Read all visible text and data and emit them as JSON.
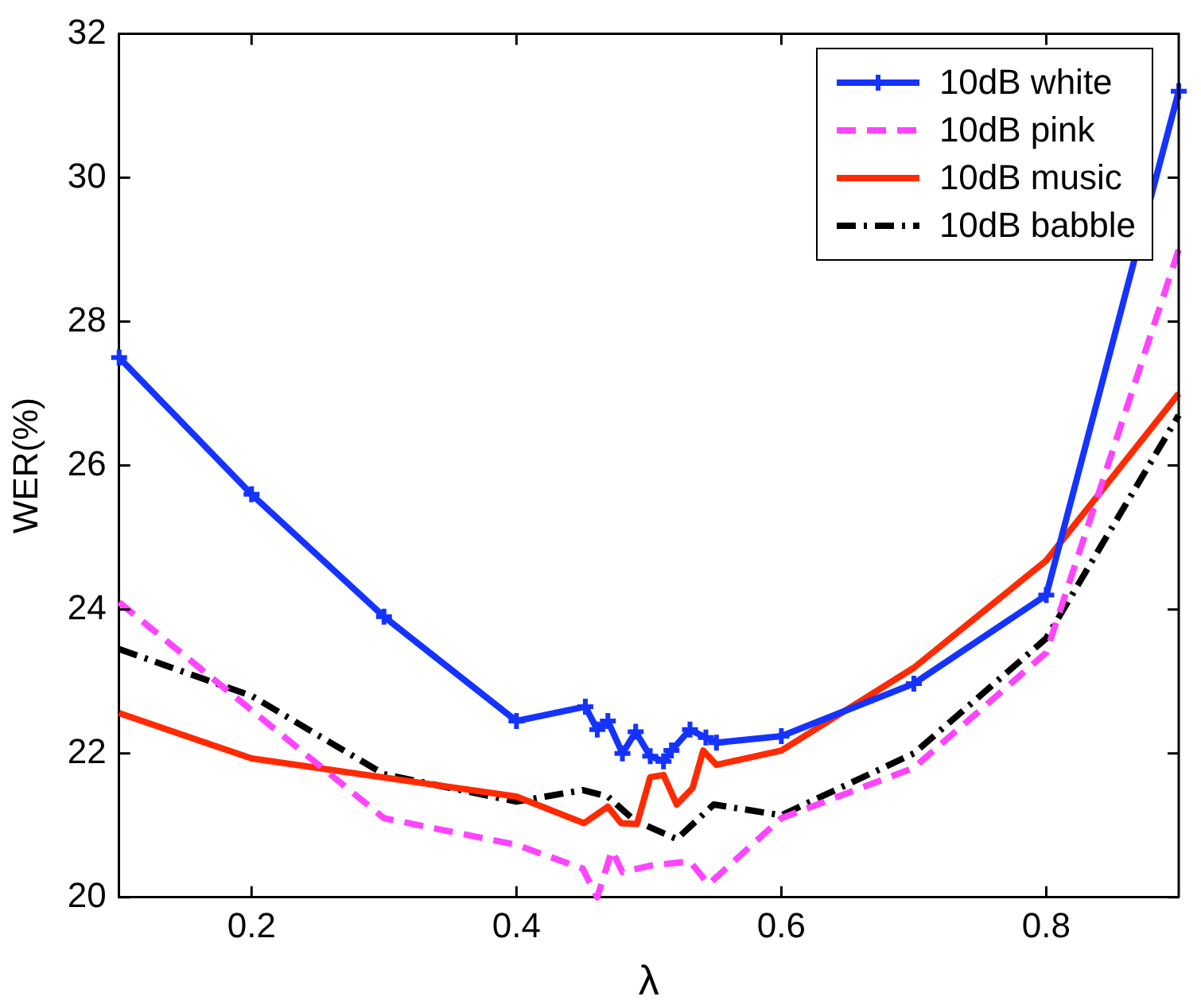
{
  "chart_data": {
    "type": "line",
    "xlabel": "λ",
    "ylabel": "WER(%)",
    "xlim": [
      0.1,
      0.9
    ],
    "ylim": [
      20,
      32
    ],
    "xticks": [
      0.2,
      0.4,
      0.6,
      0.8
    ],
    "yticks": [
      20,
      22,
      24,
      26,
      28,
      30,
      32
    ],
    "grid": false,
    "legend": "top right",
    "series": [
      {
        "name": "10dB white",
        "color": "#1533ff",
        "marker": "cross",
        "line_style": "solid",
        "x": [
          0.1,
          0.2,
          0.3,
          0.4,
          0.452,
          0.461,
          0.469,
          0.48,
          0.49,
          0.501,
          0.511,
          0.517,
          0.531,
          0.543,
          0.551,
          0.6,
          0.7,
          0.8,
          0.9
        ],
        "values": [
          27.5,
          25.6,
          23.9,
          22.45,
          22.65,
          22.33,
          22.45,
          22.0,
          22.3,
          21.96,
          21.89,
          22.04,
          22.33,
          22.22,
          22.15,
          22.24,
          22.97,
          24.2,
          31.2
        ]
      },
      {
        "name": "10dB pink",
        "color": "#ff44ff",
        "marker": "none",
        "line_style": "dashed",
        "x": [
          0.1,
          0.2,
          0.3,
          0.4,
          0.45,
          0.461,
          0.472,
          0.48,
          0.501,
          0.531,
          0.545,
          0.6,
          0.7,
          0.8,
          0.9
        ],
        "values": [
          24.1,
          22.6,
          21.1,
          20.73,
          20.4,
          20.0,
          20.65,
          20.35,
          20.44,
          20.5,
          20.18,
          21.1,
          21.8,
          23.4,
          29.0
        ]
      },
      {
        "name": "10dB music",
        "color": "#ff2a00",
        "marker": "none",
        "line_style": "solid",
        "x": [
          0.1,
          0.2,
          0.4,
          0.451,
          0.469,
          0.479,
          0.491,
          0.501,
          0.511,
          0.521,
          0.533,
          0.541,
          0.551,
          0.6,
          0.7,
          0.8,
          0.9
        ],
        "values": [
          22.56,
          21.93,
          21.4,
          21.03,
          21.26,
          21.03,
          21.02,
          21.67,
          21.7,
          21.29,
          21.52,
          22.04,
          21.84,
          22.04,
          23.19,
          24.68,
          27.0
        ]
      },
      {
        "name": "10dB babble",
        "color": "#000000",
        "marker": "none",
        "line_style": "dashdot",
        "x": [
          0.1,
          0.2,
          0.3,
          0.4,
          0.45,
          0.469,
          0.489,
          0.521,
          0.549,
          0.6,
          0.7,
          0.8,
          0.9
        ],
        "values": [
          23.45,
          22.8,
          21.71,
          21.33,
          21.49,
          21.4,
          21.07,
          20.81,
          21.29,
          21.14,
          22.0,
          23.6,
          26.7
        ]
      }
    ]
  }
}
